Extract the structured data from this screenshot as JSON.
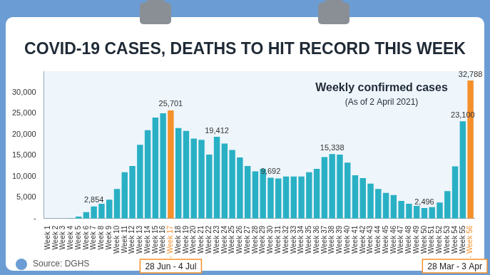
{
  "chart_data": {
    "type": "bar",
    "title": "COVID-19 CASES, DEATHS TO HIT RECORD THIS WEEK",
    "subtitle": [
      "Weekly confirmed cases",
      "(As of 2 April 2021)"
    ],
    "categories": [
      "Week 1",
      "Week 2",
      "Week 3",
      "Week 4",
      "Week 5",
      "Week 6",
      "Week 7",
      "Week 8",
      "Week 9",
      "Week 10",
      "Week 11",
      "Week 12",
      "Week 13",
      "Week 14",
      "Week 15",
      "Week 16",
      "Week 17",
      "Week 18",
      "Week 19",
      "Week 20",
      "Week 21",
      "Week 22",
      "Week 23",
      "Week 24",
      "Week 25",
      "Week 26",
      "Week 27",
      "Week 28",
      "Week 29",
      "Week 30",
      "Week 31",
      "Week 32",
      "Week 33",
      "Week 34",
      "Week 35",
      "Week 36",
      "Week 37",
      "Week 38",
      "Week 39",
      "Week 40",
      "Week 41",
      "Week 42",
      "Week 43",
      "Week 44",
      "Week 45",
      "Week 46",
      "Week 47",
      "Week 48",
      "Week 49",
      "Week 50",
      "Week 51",
      "Week 52",
      "Week 53",
      "Week 54",
      "Week 55",
      "Week 56"
    ],
    "values": [
      0,
      0,
      0,
      100,
      450,
      1500,
      2854,
      3500,
      4500,
      7000,
      11000,
      12500,
      17500,
      21000,
      24000,
      25000,
      25701,
      21500,
      20800,
      19000,
      18700,
      15200,
      19412,
      17800,
      16300,
      14500,
      12500,
      11200,
      11800,
      9692,
      9500,
      10000,
      10000,
      10000,
      11000,
      11800,
      14600,
      15338,
      15200,
      13300,
      10300,
      9600,
      8300,
      7000,
      6100,
      5600,
      4200,
      3500,
      3000,
      2496,
      2700,
      3800,
      6500,
      12400,
      23100,
      32788
    ],
    "value_labels": [
      null,
      null,
      null,
      null,
      null,
      null,
      "2,854",
      null,
      null,
      null,
      null,
      null,
      null,
      null,
      null,
      null,
      "25,701",
      null,
      null,
      null,
      null,
      null,
      "19,412",
      null,
      null,
      null,
      null,
      null,
      null,
      "9,692",
      null,
      null,
      null,
      null,
      null,
      null,
      null,
      "15,338",
      null,
      null,
      null,
      null,
      null,
      null,
      null,
      null,
      null,
      null,
      null,
      "2,496",
      null,
      null,
      null,
      null,
      "23,100",
      "32,788"
    ],
    "data_labels": true,
    "color": "#29b0c4",
    "colors": [
      "#29b0c4",
      "#29b0c4",
      "#29b0c4",
      "#29b0c4",
      "#29b0c4",
      "#29b0c4",
      "#29b0c4",
      "#29b0c4",
      "#29b0c4",
      "#29b0c4",
      "#29b0c4",
      "#29b0c4",
      "#29b0c4",
      "#29b0c4",
      "#29b0c4",
      "#29b0c4",
      "#f5902a",
      "#29b0c4",
      "#29b0c4",
      "#29b0c4",
      "#29b0c4",
      "#29b0c4",
      "#29b0c4",
      "#29b0c4",
      "#29b0c4",
      "#29b0c4",
      "#29b0c4",
      "#29b0c4",
      "#29b0c4",
      "#29b0c4",
      "#29b0c4",
      "#29b0c4",
      "#29b0c4",
      "#29b0c4",
      "#29b0c4",
      "#29b0c4",
      "#29b0c4",
      "#29b0c4",
      "#29b0c4",
      "#29b0c4",
      "#29b0c4",
      "#29b0c4",
      "#29b0c4",
      "#29b0c4",
      "#29b0c4",
      "#29b0c4",
      "#29b0c4",
      "#29b0c4",
      "#29b0c4",
      "#29b0c4",
      "#29b0c4",
      "#29b0c4",
      "#29b0c4",
      "#29b0c4",
      "#29b0c4",
      "#f5902a"
    ],
    "ylim": [
      0,
      35000
    ],
    "yticks": [
      {
        "value": 0,
        "label": "-"
      },
      {
        "value": 5000,
        "label": "5,000"
      },
      {
        "value": 10000,
        "label": "10,000"
      },
      {
        "value": 15000,
        "label": "15,000"
      },
      {
        "value": 20000,
        "label": "20,000"
      },
      {
        "value": 25000,
        "label": "25,000"
      },
      {
        "value": 30000,
        "label": "30,000"
      }
    ],
    "grid": false,
    "annotations": [
      {
        "text": "28 Jun - 4 Jul",
        "category": "Week 17"
      },
      {
        "text": "28 Mar - 3 Apr",
        "category": "Week 56"
      },
      {
        "text": "Source: DGHS"
      }
    ]
  }
}
